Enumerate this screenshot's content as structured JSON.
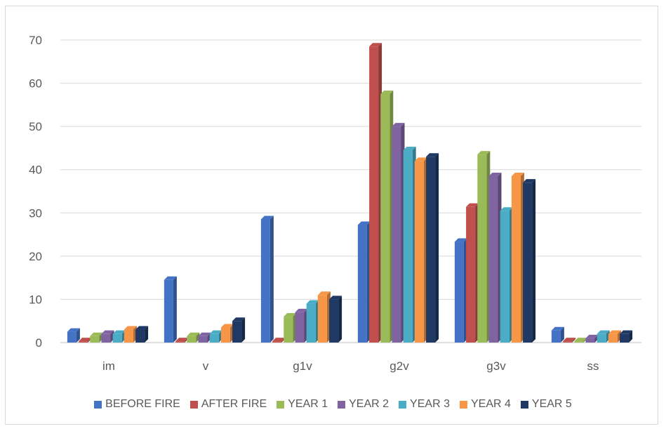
{
  "chart_data": {
    "type": "bar",
    "categories": [
      "im",
      "v",
      "g1v",
      "g2v",
      "g3v",
      "ss"
    ],
    "ylim": [
      0,
      70
    ],
    "yticks": [
      0,
      10,
      20,
      30,
      40,
      50,
      60,
      70
    ],
    "grid": true,
    "legend_position": "bottom",
    "title": "",
    "xlabel": "",
    "ylabel": "",
    "series": [
      {
        "name": "BEFORE FIRE",
        "color": "#4472C4",
        "values": [
          2.5,
          14.5,
          28.5,
          27.2,
          23.3,
          2.8
        ]
      },
      {
        "name": "AFTER FIRE",
        "color": "#C0504D",
        "values": [
          0.3,
          0.3,
          0.3,
          68.5,
          31.4,
          0.3
        ]
      },
      {
        "name": "YEAR 1",
        "color": "#9BBB59",
        "values": [
          1.5,
          1.5,
          6.0,
          57.5,
          43.5,
          0.3
        ]
      },
      {
        "name": "YEAR 2",
        "color": "#8064A2",
        "values": [
          2.0,
          1.5,
          7.0,
          50.0,
          38.5,
          1.0
        ]
      },
      {
        "name": "YEAR 3",
        "color": "#4BACC6",
        "values": [
          2.0,
          2.0,
          9.0,
          44.5,
          30.5,
          2.0
        ]
      },
      {
        "name": "YEAR 4",
        "color": "#F79646",
        "values": [
          3.0,
          3.5,
          11.0,
          42.0,
          38.5,
          2.0
        ]
      },
      {
        "name": "YEAR 5",
        "color": "#1F3864",
        "values": [
          3.0,
          5.0,
          10.0,
          43.0,
          37.0,
          2.0
        ]
      }
    ]
  }
}
